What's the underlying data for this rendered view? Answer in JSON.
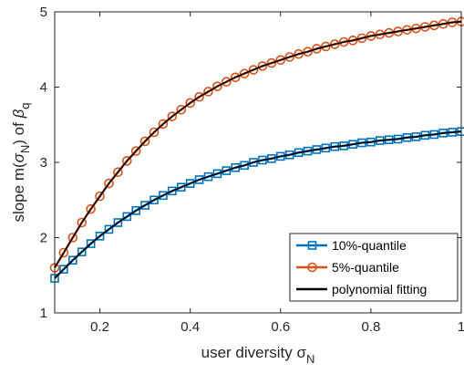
{
  "chart_data": {
    "type": "line",
    "xlabel": "user diversity σ",
    "xlabel_sub": "N",
    "ylabel_parts": [
      "slope m(",
      "σ",
      "N",
      ") of ",
      "β",
      "q"
    ],
    "xlim": [
      0.1,
      1
    ],
    "ylim": [
      1,
      5
    ],
    "xticks": [
      "0.2",
      "0.4",
      "0.6",
      "0.8",
      "1"
    ],
    "yticks": [
      "1",
      "2",
      "3",
      "4",
      "5"
    ],
    "grid": false,
    "legend_position": "bottom-right",
    "series": [
      {
        "name": "10%-quantile",
        "color": "#0072BD",
        "marker": "square",
        "x": [
          0.1,
          0.12,
          0.14,
          0.16,
          0.18,
          0.2,
          0.22,
          0.24,
          0.26,
          0.28,
          0.3,
          0.32,
          0.34,
          0.36,
          0.38,
          0.4,
          0.42,
          0.44,
          0.46,
          0.48,
          0.5,
          0.52,
          0.54,
          0.56,
          0.58,
          0.6,
          0.62,
          0.64,
          0.66,
          0.68,
          0.7,
          0.72,
          0.74,
          0.76,
          0.78,
          0.8,
          0.82,
          0.84,
          0.86,
          0.88,
          0.9,
          0.92,
          0.94,
          0.96,
          0.98,
          1.0
        ],
        "values": [
          1.46,
          1.58,
          1.7,
          1.81,
          1.92,
          2.02,
          2.11,
          2.2,
          2.28,
          2.36,
          2.43,
          2.5,
          2.56,
          2.62,
          2.67,
          2.72,
          2.77,
          2.81,
          2.85,
          2.89,
          2.93,
          2.96,
          3.0,
          3.03,
          3.05,
          3.08,
          3.1,
          3.13,
          3.15,
          3.17,
          3.19,
          3.21,
          3.22,
          3.24,
          3.26,
          3.27,
          3.29,
          3.3,
          3.31,
          3.33,
          3.34,
          3.36,
          3.37,
          3.39,
          3.4,
          3.41
        ]
      },
      {
        "name": "5%-quantile",
        "color": "#D95319",
        "marker": "circle",
        "x": [
          0.1,
          0.12,
          0.14,
          0.16,
          0.18,
          0.2,
          0.22,
          0.24,
          0.26,
          0.28,
          0.3,
          0.32,
          0.34,
          0.36,
          0.38,
          0.4,
          0.42,
          0.44,
          0.46,
          0.48,
          0.5,
          0.52,
          0.54,
          0.56,
          0.58,
          0.6,
          0.62,
          0.64,
          0.66,
          0.68,
          0.7,
          0.72,
          0.74,
          0.76,
          0.78,
          0.8,
          0.82,
          0.84,
          0.86,
          0.88,
          0.9,
          0.92,
          0.94,
          0.96,
          0.98,
          1.0
        ],
        "values": [
          1.6,
          1.8,
          2.0,
          2.2,
          2.38,
          2.55,
          2.72,
          2.87,
          3.02,
          3.15,
          3.28,
          3.4,
          3.51,
          3.61,
          3.7,
          3.79,
          3.87,
          3.94,
          4.01,
          4.07,
          4.13,
          4.18,
          4.23,
          4.28,
          4.32,
          4.36,
          4.4,
          4.44,
          4.47,
          4.51,
          4.54,
          4.57,
          4.6,
          4.62,
          4.65,
          4.68,
          4.7,
          4.72,
          4.74,
          4.76,
          4.78,
          4.8,
          4.82,
          4.84,
          4.86,
          4.87
        ]
      },
      {
        "name": "polynomial fitting",
        "color": "#000000",
        "marker": "none",
        "x": [],
        "values": []
      }
    ]
  }
}
